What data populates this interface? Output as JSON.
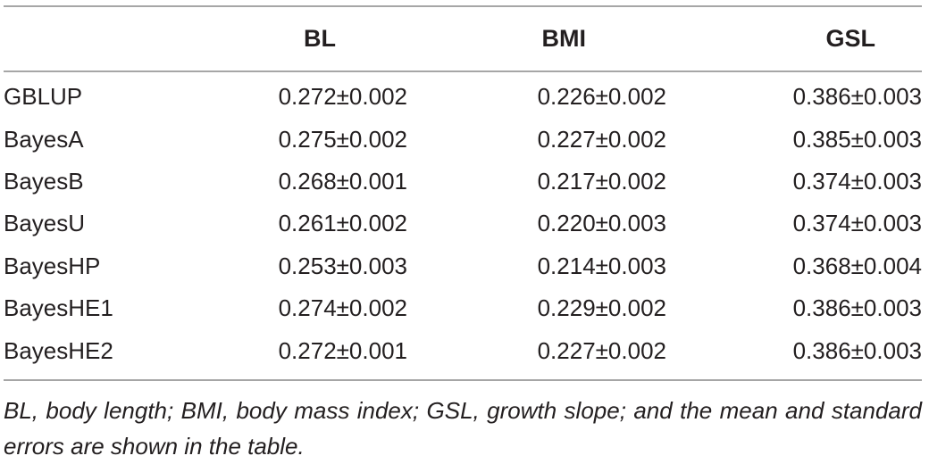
{
  "table": {
    "headers": [
      "",
      "BL",
      "BMI",
      "GSL"
    ],
    "rows": [
      [
        "GBLUP",
        "0.272±0.002",
        "0.226±0.002",
        "0.386±0.003"
      ],
      [
        "BayesA",
        "0.275±0.002",
        "0.227±0.002",
        "0.385±0.003"
      ],
      [
        "BayesB",
        "0.268±0.001",
        "0.217±0.002",
        "0.374±0.003"
      ],
      [
        "BayesU",
        "0.261±0.002",
        "0.220±0.003",
        "0.374±0.003"
      ],
      [
        "BayesHP",
        "0.253±0.003",
        "0.214±0.003",
        "0.368±0.004"
      ],
      [
        "BayesHE1",
        "0.274±0.002",
        "0.229±0.002",
        "0.386±0.003"
      ],
      [
        "BayesHE2",
        "0.272±0.001",
        "0.227±0.002",
        "0.386±0.003"
      ]
    ]
  },
  "footnote": "BL, body length; BMI, body mass index; GSL, growth slope; and the mean and standard errors are shown in the table."
}
